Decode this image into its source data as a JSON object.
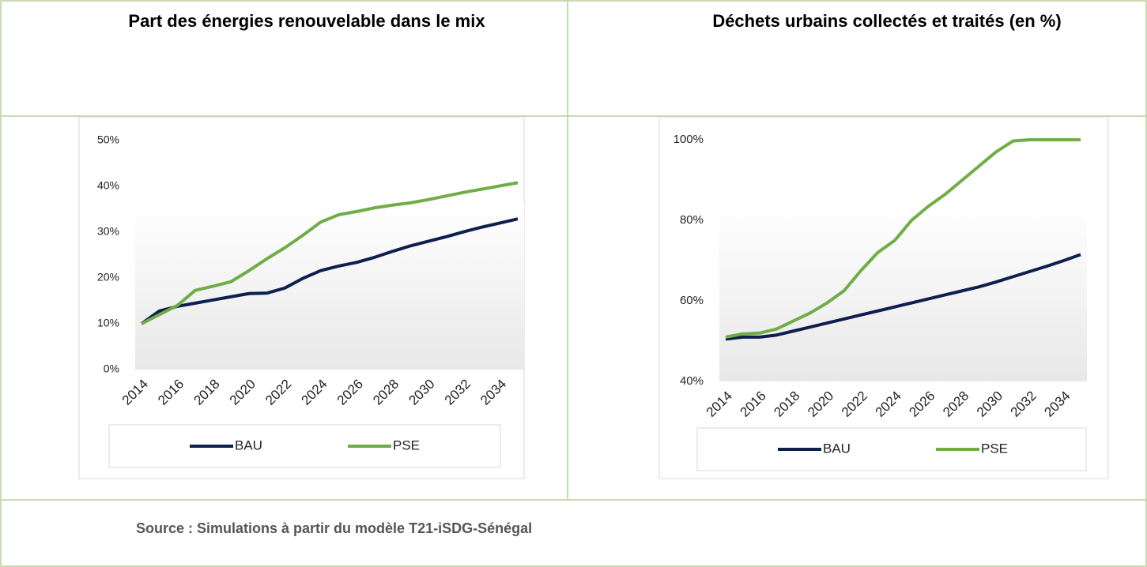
{
  "source": "Source : Simulations à partir du modèle T21-iSDG-Sénégal",
  "chart_data": [
    {
      "type": "line",
      "title": "Part des énergies renouvelable dans le mix",
      "categories": [
        "2014",
        null,
        "2016",
        null,
        "2018",
        null,
        "2020",
        null,
        "2022",
        null,
        "2024",
        null,
        "2026",
        null,
        "2028",
        null,
        "2030",
        null,
        "2032",
        null,
        "2034",
        null
      ],
      "series": [
        {
          "name": "BAU",
          "color": "#0e1f4f",
          "values": [
            10,
            12.8,
            13.8,
            14.5,
            15.2,
            15.9,
            16.6,
            16.7,
            17.8,
            19.9,
            21.6,
            22.6,
            23.4,
            24.5,
            25.8,
            27,
            28,
            29,
            30.1,
            31.1,
            32,
            32.9
          ]
        },
        {
          "name": "PSE",
          "color": "#70ad47",
          "values": [
            10,
            12,
            14,
            17.3,
            18.2,
            19.2,
            21.6,
            24.2,
            26.6,
            29.3,
            32.2,
            33.8,
            34.5,
            35.3,
            35.9,
            36.4,
            37.1,
            37.9,
            38.7,
            39.4,
            40.1,
            40.8
          ]
        }
      ],
      "ylim": [
        0,
        50
      ],
      "yticks": [
        {
          "value": 0,
          "label": "0%"
        },
        {
          "value": 10,
          "label": "10%"
        },
        {
          "value": 20,
          "label": "20%"
        },
        {
          "value": 30,
          "label": "30%"
        },
        {
          "value": 40,
          "label": "40%"
        },
        {
          "value": 50,
          "label": "50%"
        }
      ],
      "legend": "bottom"
    },
    {
      "type": "line",
      "title": "Déchets urbains collectés et traités (en %)",
      "categories": [
        "2014",
        null,
        "2016",
        null,
        "2018",
        null,
        "2020",
        null,
        "2022",
        null,
        "2024",
        null,
        "2026",
        null,
        "2028",
        null,
        "2030",
        null,
        "2032",
        null,
        "2034",
        null
      ],
      "series": [
        {
          "name": "BAU",
          "color": "#0e1f4f",
          "values": [
            50.5,
            51,
            51,
            51.5,
            52.5,
            53.5,
            54.5,
            55.5,
            56.5,
            57.5,
            58.5,
            59.5,
            60.5,
            61.5,
            62.5,
            63.5,
            64.7,
            66,
            67.3,
            68.6,
            70,
            71.5
          ]
        },
        {
          "name": "PSE",
          "color": "#70ad47",
          "values": [
            51,
            51.8,
            52,
            53,
            55,
            57,
            59.5,
            62.5,
            67.5,
            72,
            75,
            80,
            83.5,
            86.5,
            90,
            93.5,
            97,
            99.7,
            100,
            100,
            100,
            100
          ]
        }
      ],
      "ylim": [
        40,
        100
      ],
      "yticks": [
        {
          "value": 40,
          "label": "40%"
        },
        {
          "value": 60,
          "label": "60%"
        },
        {
          "value": 80,
          "label": "80%"
        },
        {
          "value": 100,
          "label": "100%"
        }
      ],
      "legend": "bottom"
    }
  ]
}
